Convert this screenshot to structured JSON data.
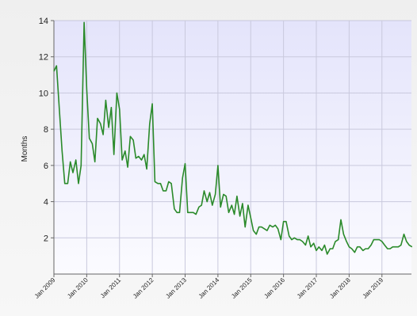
{
  "chart_data": {
    "type": "line",
    "title": "",
    "xlabel": "",
    "ylabel": "Months",
    "ylim": [
      0,
      14
    ],
    "yticks": [
      2,
      4,
      6,
      8,
      10,
      12,
      14
    ],
    "xlim": [
      2009.0,
      2019.9
    ],
    "xticks": [
      {
        "label": "Jan 2009",
        "x": 2009
      },
      {
        "label": "Jan 2010",
        "x": 2010
      },
      {
        "label": "Jan 2011",
        "x": 2011
      },
      {
        "label": "Jan 2012",
        "x": 2012
      },
      {
        "label": "Jan 2013",
        "x": 2013
      },
      {
        "label": "Jan 2014",
        "x": 2014
      },
      {
        "label": "Jan 2015",
        "x": 2015
      },
      {
        "label": "Jan 2016",
        "x": 2016
      },
      {
        "label": "Jan 2017",
        "x": 2017
      },
      {
        "label": "Jan 2018",
        "x": 2018
      },
      {
        "label": "Jan 2019",
        "x": 2019
      }
    ],
    "grid": true,
    "legend": "none",
    "series": [
      {
        "color": "#2a8a2a",
        "x": [
          2009.0,
          2009.08,
          2009.17,
          2009.25,
          2009.33,
          2009.42,
          2009.5,
          2009.58,
          2009.67,
          2009.75,
          2009.83,
          2009.92,
          2010.0,
          2010.08,
          2010.17,
          2010.25,
          2010.33,
          2010.42,
          2010.5,
          2010.58,
          2010.67,
          2010.75,
          2010.83,
          2010.92,
          2011.0,
          2011.08,
          2011.17,
          2011.25,
          2011.33,
          2011.42,
          2011.5,
          2011.58,
          2011.67,
          2011.75,
          2011.83,
          2011.92,
          2012.0,
          2012.08,
          2012.17,
          2012.25,
          2012.33,
          2012.42,
          2012.5,
          2012.58,
          2012.67,
          2012.75,
          2012.83,
          2012.92,
          2013.0,
          2013.08,
          2013.17,
          2013.25,
          2013.33,
          2013.42,
          2013.5,
          2013.58,
          2013.67,
          2013.75,
          2013.83,
          2013.92,
          2014.0,
          2014.08,
          2014.17,
          2014.25,
          2014.33,
          2014.42,
          2014.5,
          2014.58,
          2014.67,
          2014.75,
          2014.83,
          2014.92,
          2015.0,
          2015.08,
          2015.17,
          2015.25,
          2015.33,
          2015.42,
          2015.5,
          2015.58,
          2015.67,
          2015.75,
          2015.83,
          2015.92,
          2016.0,
          2016.08,
          2016.17,
          2016.25,
          2016.33,
          2016.42,
          2016.5,
          2016.58,
          2016.67,
          2016.75,
          2016.83,
          2016.92,
          2017.0,
          2017.08,
          2017.17,
          2017.25,
          2017.33,
          2017.42,
          2017.5,
          2017.58,
          2017.67,
          2017.75,
          2017.83,
          2017.92,
          2018.0,
          2018.08,
          2018.17,
          2018.25,
          2018.33,
          2018.42,
          2018.5,
          2018.58,
          2018.67,
          2018.75,
          2018.83,
          2018.92,
          2019.0,
          2019.08,
          2019.17,
          2019.25,
          2019.33,
          2019.42,
          2019.5,
          2019.58,
          2019.67,
          2019.75,
          2019.83,
          2019.92
        ],
        "y": [
          11.2,
          11.5,
          9.0,
          6.8,
          5.0,
          5.0,
          6.2,
          5.6,
          6.3,
          5.0,
          6.0,
          13.9,
          10.2,
          7.5,
          7.2,
          6.2,
          8.6,
          8.3,
          7.7,
          9.6,
          8.1,
          9.2,
          6.6,
          10.0,
          9.1,
          6.3,
          6.8,
          5.9,
          7.6,
          7.4,
          6.4,
          6.5,
          6.3,
          6.6,
          5.8,
          8.3,
          9.4,
          5.1,
          5.0,
          5.0,
          4.6,
          4.6,
          5.1,
          5.0,
          3.6,
          3.4,
          3.4,
          5.3,
          6.1,
          3.4,
          3.4,
          3.4,
          3.3,
          3.7,
          3.8,
          4.6,
          4.0,
          4.5,
          3.8,
          4.4,
          6.0,
          3.7,
          4.4,
          4.3,
          3.4,
          3.8,
          3.3,
          4.3,
          3.2,
          3.9,
          2.6,
          3.8,
          3.1,
          2.4,
          2.2,
          2.6,
          2.6,
          2.5,
          2.4,
          2.7,
          2.6,
          2.7,
          2.5,
          1.9,
          2.9,
          2.9,
          2.1,
          1.9,
          2.0,
          1.9,
          1.9,
          1.8,
          1.6,
          2.1,
          1.5,
          1.7,
          1.3,
          1.5,
          1.3,
          1.6,
          1.1,
          1.4,
          1.4,
          1.8,
          1.9,
          3.0,
          2.2,
          1.8,
          1.5,
          1.4,
          1.2,
          1.5,
          1.5,
          1.3,
          1.4,
          1.4,
          1.6,
          1.9,
          1.9,
          1.9,
          1.8,
          1.6,
          1.4,
          1.4,
          1.5,
          1.5,
          1.5,
          1.6,
          2.2,
          1.8,
          1.6,
          1.5
        ]
      }
    ]
  }
}
